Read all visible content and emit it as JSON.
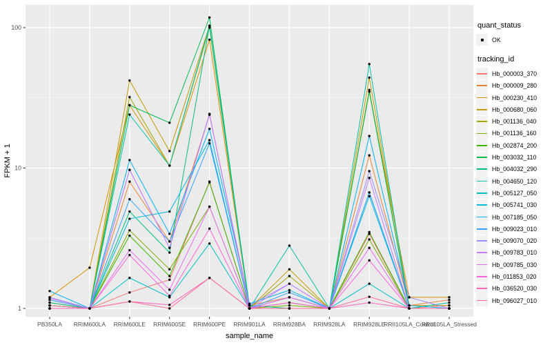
{
  "figure": {
    "bg": "#FFFFFF",
    "panel_bg": "#EBEBEB",
    "grid_color": "#FFFFFF",
    "tick_color": "#333333",
    "tick_text_color": "#4D4D4D",
    "point_color": "#000000"
  },
  "axes": {
    "x_title": "sample_name",
    "y_title": "FPKM + 1",
    "y_tick_labels": [
      "1",
      "10",
      "100"
    ]
  },
  "legend": {
    "quant_status_title": "quant_status",
    "ok_label": "OK",
    "tracking_id_title": "tracking_id"
  },
  "chart_data": {
    "type": "line",
    "x_type": "categorical",
    "y_scale": "log10",
    "title": "",
    "xlabel": "sample_name",
    "ylabel": "FPKM + 1",
    "y_ticks": [
      1,
      10,
      100
    ],
    "y_minor_ticks": [
      3.1623,
      31.623
    ],
    "ylim": [
      0.87,
      135
    ],
    "legend_position": "right",
    "grid": true,
    "categories": [
      "PB350LA",
      "RRIM600LA",
      "RRIM600LE",
      "RRIM600SE",
      "RRIM600PE",
      "RRIM901LA",
      "RRIM928BA",
      "RRIM928LA",
      "RRIM928LE",
      "RRII105LA_Control",
      "RRII105LA_Stressed"
    ],
    "series": [
      {
        "name": "Hb_000003_370",
        "color": "#F8766D",
        "values": [
          1.1,
          1.0,
          1.3,
          1.6,
          8.0,
          1.0,
          1.1,
          1.0,
          3.4,
          1.0,
          1.05
        ]
      },
      {
        "name": "Hb_000009_280",
        "color": "#EA8331",
        "values": [
          1.0,
          1.0,
          8.0,
          3.0,
          24.0,
          1.05,
          1.2,
          1.0,
          12.3,
          1.05,
          1.15
        ]
      },
      {
        "name": "Hb_000230_410",
        "color": "#D89000",
        "values": [
          1.2,
          1.95,
          28.0,
          10.4,
          82.0,
          1.0,
          1.0,
          1.0,
          35.0,
          1.2,
          1.2
        ]
      },
      {
        "name": "Hb_000680_060",
        "color": "#C09B00",
        "values": [
          1.0,
          1.0,
          42.0,
          13.2,
          103.0,
          1.0,
          1.9,
          1.0,
          44.0,
          1.05,
          1.05
        ]
      },
      {
        "name": "Hb_001136_040",
        "color": "#A3A500",
        "values": [
          1.05,
          1.0,
          32.0,
          10.4,
          100.0,
          1.0,
          1.7,
          1.0,
          36.0,
          1.0,
          1.0
        ]
      },
      {
        "name": "Hb_001136_160",
        "color": "#7CAE00",
        "values": [
          1.0,
          1.0,
          3.6,
          1.9,
          5.3,
          1.0,
          1.05,
          1.0,
          3.1,
          1.0,
          1.0
        ]
      },
      {
        "name": "Hb_002874_200",
        "color": "#39B600",
        "values": [
          1.05,
          1.0,
          3.3,
          1.7,
          7.9,
          1.0,
          1.1,
          1.0,
          3.5,
          1.0,
          1.0
        ]
      },
      {
        "name": "Hb_003032_110",
        "color": "#00BB4E",
        "values": [
          1.0,
          1.0,
          28.0,
          21.0,
          118.0,
          1.0,
          1.0,
          1.0,
          35.0,
          1.0,
          1.0
        ]
      },
      {
        "name": "Hb_004032_290",
        "color": "#00BF7D",
        "values": [
          1.1,
          1.0,
          4.9,
          2.5,
          103.0,
          1.05,
          1.0,
          1.0,
          6.7,
          1.0,
          1.0
        ]
      },
      {
        "name": "Hb_004650_120",
        "color": "#00C1A3",
        "values": [
          1.0,
          1.0,
          24.0,
          10.4,
          103.0,
          1.0,
          2.8,
          1.0,
          55.0,
          1.0,
          1.1
        ]
      },
      {
        "name": "Hb_005127_050",
        "color": "#00BFC4",
        "values": [
          1.0,
          1.0,
          1.65,
          1.2,
          2.9,
          1.0,
          1.0,
          1.0,
          1.5,
          1.0,
          1.0
        ]
      },
      {
        "name": "Hb_005741_030",
        "color": "#00BAE0",
        "values": [
          1.05,
          1.0,
          4.35,
          4.9,
          15.8,
          1.0,
          1.2,
          1.0,
          6.3,
          1.0,
          1.0
        ]
      },
      {
        "name": "Hb_007185_050",
        "color": "#00B0F6",
        "values": [
          1.33,
          1.0,
          11.4,
          3.4,
          19.0,
          1.08,
          1.35,
          1.0,
          16.9,
          1.05,
          1.0
        ]
      },
      {
        "name": "Hb_009023_010",
        "color": "#35A2FF",
        "values": [
          1.15,
          1.0,
          6.0,
          3.0,
          15.0,
          1.0,
          1.3,
          1.0,
          6.7,
          1.0,
          1.0
        ]
      },
      {
        "name": "Hb_009070_020",
        "color": "#9590FF",
        "values": [
          1.2,
          1.0,
          9.7,
          2.7,
          24.0,
          1.05,
          1.5,
          1.0,
          9.5,
          1.2,
          1.0
        ]
      },
      {
        "name": "Hb_009783_010",
        "color": "#C77CFF",
        "values": [
          1.18,
          1.0,
          9.7,
          2.7,
          24.3,
          1.0,
          1.5,
          1.0,
          8.5,
          1.0,
          1.0
        ]
      },
      {
        "name": "Hb_009785_030",
        "color": "#E76BF3",
        "values": [
          1.0,
          1.0,
          2.6,
          1.36,
          5.3,
          1.0,
          1.2,
          1.0,
          2.7,
          1.0,
          1.0
        ]
      },
      {
        "name": "Hb_011853_020",
        "color": "#FA62DB",
        "values": [
          1.0,
          1.0,
          2.4,
          1.23,
          3.7,
          1.0,
          1.1,
          1.0,
          2.2,
          1.0,
          1.0
        ]
      },
      {
        "name": "Hb_036520_030",
        "color": "#FF62BC",
        "values": [
          1.0,
          1.0,
          1.12,
          1.06,
          1.65,
          1.0,
          1.0,
          1.0,
          1.1,
          1.0,
          1.0
        ]
      },
      {
        "name": "Hb_096027_010",
        "color": "#FF6A98",
        "values": [
          1.05,
          1.0,
          1.12,
          1.0,
          1.65,
          1.0,
          1.0,
          1.0,
          1.21,
          1.0,
          1.0
        ]
      }
    ]
  }
}
